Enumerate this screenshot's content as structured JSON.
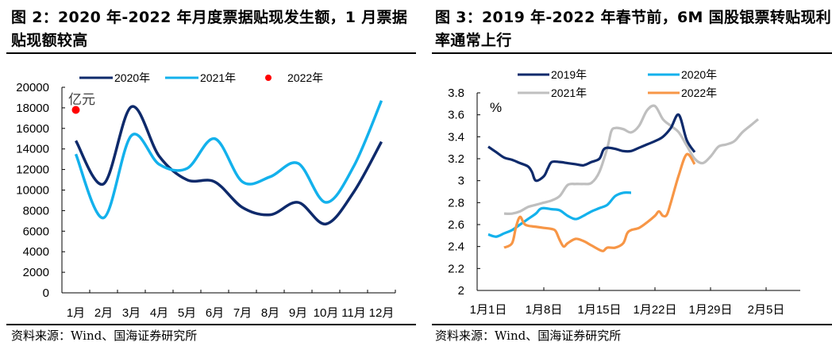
{
  "chart_data": [
    {
      "type": "line",
      "title": "图 2：2020 年-2022 年月度票据贴现发生额，1 月票据贴现额较高",
      "unit_label": "亿元",
      "xlabel": "",
      "ylabel": "亿元",
      "categories": [
        "1月",
        "2月",
        "3月",
        "4月",
        "5月",
        "6月",
        "7月",
        "8月",
        "9月",
        "10月",
        "11月",
        "12月"
      ],
      "ylim": [
        0,
        20000
      ],
      "yticks": [
        0,
        2000,
        4000,
        6000,
        8000,
        10000,
        12000,
        14000,
        16000,
        18000,
        20000
      ],
      "grid": false,
      "legend": "top",
      "series": [
        {
          "name": "2020年",
          "color": "#0e2a6b",
          "style": "line",
          "values": [
            14800,
            10600,
            18100,
            13300,
            11000,
            10800,
            8300,
            7600,
            8800,
            6700,
            9800,
            14700
          ]
        },
        {
          "name": "2021年",
          "color": "#13b1ec",
          "style": "line",
          "values": [
            13500,
            7300,
            15300,
            12500,
            12100,
            15000,
            10800,
            11300,
            12600,
            8800,
            12300,
            18700
          ]
        },
        {
          "name": "2022年",
          "color": "#ff0000",
          "style": "point",
          "values": [
            17800,
            null,
            null,
            null,
            null,
            null,
            null,
            null,
            null,
            null,
            null,
            null
          ]
        }
      ],
      "source": "资料来源：Wind、国海证券研究所"
    },
    {
      "type": "line",
      "title": "图 3：2019 年-2022 年春节前，6M 国股银票转贴现利率通常上行",
      "unit_label": "%",
      "xlabel": "",
      "ylabel": "%",
      "x_ticks": [
        "1月1日",
        "1月8日",
        "1月15日",
        "1月22日",
        "1月29日",
        "2月5日"
      ],
      "x_tick_days": [
        0,
        7,
        14,
        21,
        28,
        35
      ],
      "xlim_days": [
        0,
        41
      ],
      "ylim": [
        2,
        3.8
      ],
      "yticks": [
        "2",
        "2.2",
        "2.4",
        "2.6",
        "2.8",
        "3",
        "3.2",
        "3.4",
        "3.6",
        "3.8"
      ],
      "grid": false,
      "legend": "top",
      "series": [
        {
          "name": "2019年",
          "color": "#0e2a6b",
          "points": [
            [
              0,
              3.31
            ],
            [
              1,
              3.26
            ],
            [
              2,
              3.21
            ],
            [
              3,
              3.19
            ],
            [
              4,
              3.16
            ],
            [
              5,
              3.13
            ],
            [
              5.5,
              3.08
            ],
            [
              6,
              3.0
            ],
            [
              7,
              3.04
            ],
            [
              7.5,
              3.11
            ],
            [
              8,
              3.17
            ],
            [
              9,
              3.17
            ],
            [
              10,
              3.16
            ],
            [
              11,
              3.15
            ],
            [
              12,
              3.14
            ],
            [
              13,
              3.17
            ],
            [
              14,
              3.2
            ],
            [
              14.5,
              3.28
            ],
            [
              15,
              3.3
            ],
            [
              16,
              3.29
            ],
            [
              17,
              3.27
            ],
            [
              18,
              3.27
            ],
            [
              19,
              3.3
            ],
            [
              20,
              3.33
            ],
            [
              21,
              3.36
            ],
            [
              22,
              3.4
            ],
            [
              23,
              3.48
            ],
            [
              24,
              3.6
            ],
            [
              25,
              3.37
            ],
            [
              26,
              3.26
            ]
          ]
        },
        {
          "name": "2020年",
          "color": "#13b1ec",
          "points": [
            [
              0,
              2.51
            ],
            [
              1,
              2.49
            ],
            [
              2,
              2.52
            ],
            [
              3,
              2.55
            ],
            [
              4,
              2.6
            ],
            [
              5,
              2.65
            ],
            [
              6,
              2.7
            ],
            [
              6.5,
              2.74
            ],
            [
              7,
              2.75
            ],
            [
              8,
              2.74
            ],
            [
              9,
              2.73
            ],
            [
              10,
              2.68
            ],
            [
              11,
              2.65
            ],
            [
              12,
              2.68
            ],
            [
              13,
              2.72
            ],
            [
              14,
              2.75
            ],
            [
              15,
              2.78
            ],
            [
              16,
              2.86
            ],
            [
              17,
              2.89
            ],
            [
              18,
              2.89
            ]
          ]
        },
        {
          "name": "2021年",
          "color": "#bfbfbf",
          "points": [
            [
              2,
              2.7
            ],
            [
              3,
              2.7
            ],
            [
              4,
              2.72
            ],
            [
              5,
              2.76
            ],
            [
              6,
              2.78
            ],
            [
              7,
              2.8
            ],
            [
              8,
              2.82
            ],
            [
              9,
              2.86
            ],
            [
              10,
              2.96
            ],
            [
              11,
              2.97
            ],
            [
              12,
              2.97
            ],
            [
              13,
              2.98
            ],
            [
              14,
              3.08
            ],
            [
              15,
              3.3
            ],
            [
              15.5,
              3.45
            ],
            [
              16,
              3.48
            ],
            [
              17,
              3.47
            ],
            [
              18,
              3.44
            ],
            [
              19,
              3.5
            ],
            [
              20,
              3.64
            ],
            [
              21,
              3.68
            ],
            [
              22,
              3.56
            ],
            [
              23,
              3.5
            ],
            [
              24,
              3.44
            ],
            [
              25,
              3.32
            ],
            [
              26,
              3.2
            ],
            [
              27,
              3.16
            ],
            [
              28,
              3.22
            ],
            [
              29,
              3.31
            ],
            [
              30,
              3.33
            ],
            [
              31,
              3.36
            ],
            [
              32,
              3.44
            ],
            [
              33,
              3.5
            ],
            [
              34,
              3.56
            ]
          ]
        },
        {
          "name": "2022年",
          "color": "#f79646",
          "points": [
            [
              2,
              2.39
            ],
            [
              3,
              2.43
            ],
            [
              3.5,
              2.58
            ],
            [
              4,
              2.67
            ],
            [
              4.5,
              2.61
            ],
            [
              5,
              2.59
            ],
            [
              6,
              2.58
            ],
            [
              7,
              2.57
            ],
            [
              8,
              2.56
            ],
            [
              8.5,
              2.54
            ],
            [
              9,
              2.46
            ],
            [
              9.5,
              2.4
            ],
            [
              10,
              2.43
            ],
            [
              11,
              2.47
            ],
            [
              12,
              2.45
            ],
            [
              13,
              2.41
            ],
            [
              14,
              2.37
            ],
            [
              14.5,
              2.36
            ],
            [
              15,
              2.39
            ],
            [
              16,
              2.39
            ],
            [
              17,
              2.43
            ],
            [
              17.5,
              2.52
            ],
            [
              18,
              2.55
            ],
            [
              19,
              2.57
            ],
            [
              20,
              2.62
            ],
            [
              21,
              2.68
            ],
            [
              21.5,
              2.72
            ],
            [
              22,
              2.68
            ],
            [
              22.5,
              2.69
            ],
            [
              23,
              2.8
            ],
            [
              24,
              3.05
            ],
            [
              25,
              3.24
            ],
            [
              26,
              3.15
            ]
          ]
        }
      ],
      "source": "资料来源：Wind、国海证券研究所"
    }
  ]
}
